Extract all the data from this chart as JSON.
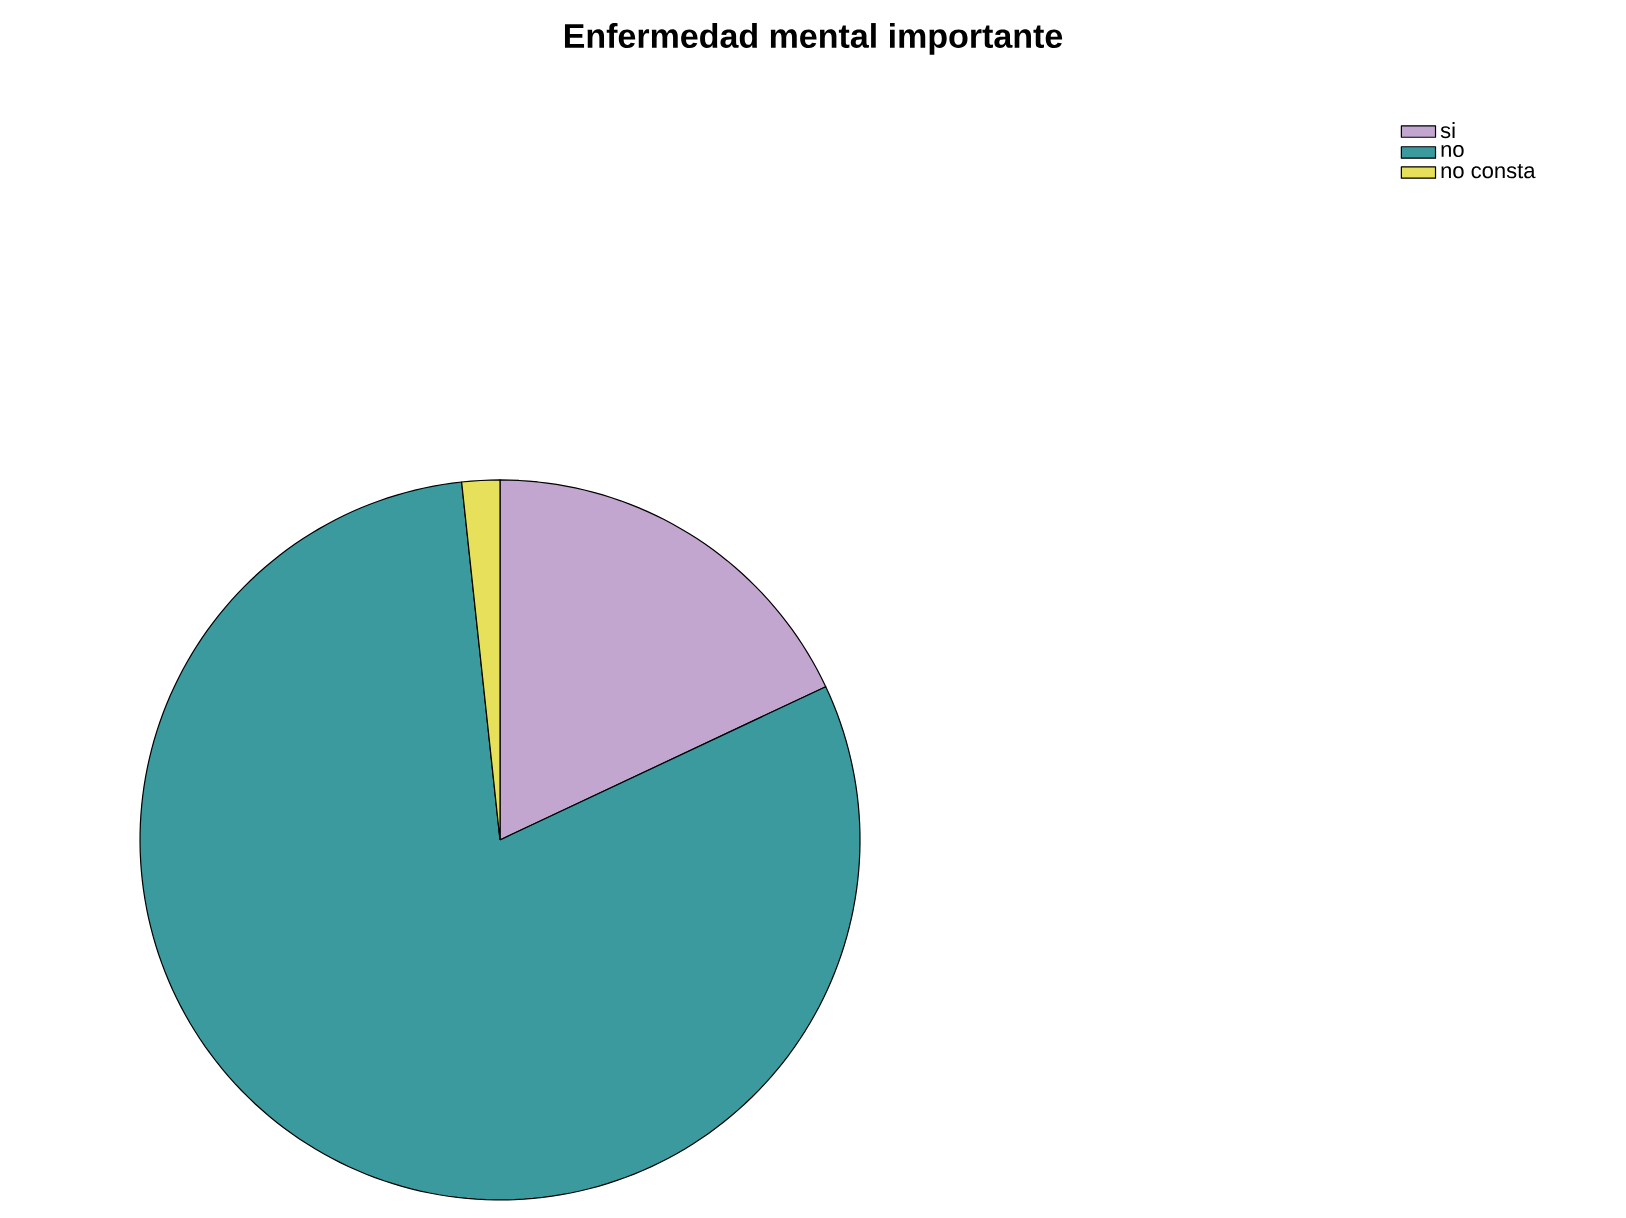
{
  "chart_data": {
    "type": "pie",
    "title": "Enfermedad mental importante",
    "categories": [
      "si",
      "no",
      "no consta"
    ],
    "values": [
      18,
      80.3,
      1.7
    ],
    "colors": [
      "#c3a6cf",
      "#3a9a9e",
      "#e6e05a"
    ],
    "legend": "top right"
  }
}
